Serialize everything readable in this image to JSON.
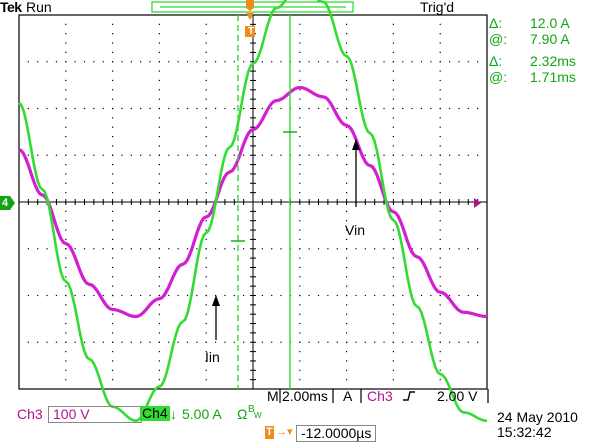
{
  "header": {
    "brand": "Tek",
    "run_state": "Run",
    "trigger_state": "Trig'd"
  },
  "cursor_readouts": {
    "delta_symbol": "Δ:",
    "at_symbol": "@:",
    "amp_delta": "12.0 A",
    "amp_at": "7.90 A",
    "time_delta": "2.32ms",
    "time_at": "1.71ms"
  },
  "markers": {
    "trigger_top": "T",
    "ground_ch4": "4"
  },
  "waveform_labels": {
    "vin": "Vin",
    "iin": "Iin"
  },
  "timebase_bar": {
    "m_label": "M",
    "time_per_div": "2.00ms",
    "a_label": "A",
    "trigger_source": "Ch3",
    "slope_icon": "rising-edge",
    "trigger_level": "2.00 V"
  },
  "channels": {
    "ch3_label": "Ch3",
    "ch3_scale": "100 V",
    "ch4_label": "Ch4",
    "ch4_scale": "5.00 A",
    "ch4_coupling": "Ω",
    "ch4_bw": "B",
    "ch4_bw_sub": "W"
  },
  "trigger_position": {
    "icon_label": "T",
    "value": "-12.0000µs"
  },
  "datetime": {
    "date": "24 May 2010",
    "time": "15:32:42"
  },
  "colors": {
    "ch3": "#d21fd2",
    "ch4": "#32dc32",
    "grid": "#000000",
    "readout_green": "#11a611",
    "readout_magenta": "#b0128c",
    "trigger_orange": "#f08a1c"
  },
  "chart_data": {
    "type": "line",
    "xlabel": "",
    "ylabel": "",
    "series": [
      {
        "name": "Vin",
        "color": "#d21fd2",
        "x_ms": [
          0,
          1,
          2,
          3,
          4,
          5,
          6,
          7,
          8,
          9,
          10,
          11,
          12,
          13,
          14,
          15,
          16,
          17,
          18,
          19,
          20
        ],
        "y_div": [
          1.12,
          0.15,
          -0.89,
          -1.76,
          -2.3,
          -2.45,
          -2.07,
          -1.33,
          -0.32,
          0.64,
          1.55,
          2.17,
          2.45,
          2.25,
          1.64,
          0.78,
          -0.21,
          -1.17,
          -1.93,
          -2.36,
          -2.45
        ]
      },
      {
        "name": "Iin",
        "color": "#32dc32",
        "x_ms": [
          0,
          1,
          2,
          3,
          4,
          5,
          6,
          7,
          8,
          9,
          10,
          11,
          12,
          13,
          14,
          15,
          16,
          17,
          18,
          19,
          20
        ],
        "y_div": [
          2.12,
          0.27,
          -1.7,
          -3.36,
          -4.38,
          -4.68,
          -3.95,
          -2.56,
          -0.66,
          1.17,
          2.96,
          4.15,
          4.67,
          4.28,
          3.12,
          1.47,
          -0.39,
          -2.23,
          -3.68,
          -4.5,
          -4.68
        ]
      }
    ]
  }
}
